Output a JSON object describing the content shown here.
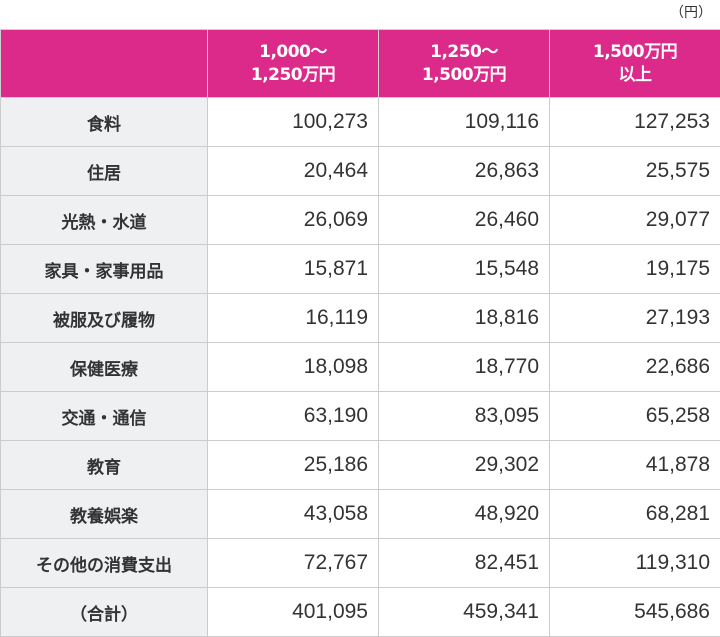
{
  "unit": "（円）",
  "colors": {
    "header_bg": "#dc2a8a",
    "label_bg": "#eef0f1",
    "border": "#cccccc"
  },
  "header": {
    "col0": "",
    "col1": {
      "line1": "1,000～",
      "line2": "1,250万円"
    },
    "col2": {
      "line1": "1,250～",
      "line2": "1,500万円"
    },
    "col3": {
      "line1": "1,500万円",
      "line2": "以上"
    }
  },
  "rows": [
    {
      "label": "食料",
      "values": [
        "100,273",
        "109,116",
        "127,253"
      ]
    },
    {
      "label": "住居",
      "values": [
        "20,464",
        "26,863",
        "25,575"
      ]
    },
    {
      "label": "光熱・水道",
      "values": [
        "26,069",
        "26,460",
        "29,077"
      ]
    },
    {
      "label": "家具・家事用品",
      "values": [
        "15,871",
        "15,548",
        "19,175"
      ]
    },
    {
      "label": "被服及び履物",
      "values": [
        "16,119",
        "18,816",
        "27,193"
      ]
    },
    {
      "label": "保健医療",
      "values": [
        "18,098",
        "18,770",
        "22,686"
      ]
    },
    {
      "label": "交通・通信",
      "values": [
        "63,190",
        "83,095",
        "65,258"
      ]
    },
    {
      "label": "教育",
      "values": [
        "25,186",
        "29,302",
        "41,878"
      ]
    },
    {
      "label": "教養娯楽",
      "values": [
        "43,058",
        "48,920",
        "68,281"
      ]
    },
    {
      "label": "その他の消費支出",
      "values": [
        "72,767",
        "82,451",
        "119,310"
      ]
    },
    {
      "label": "（合計）",
      "values": [
        "401,095",
        "459,341",
        "545,686"
      ]
    }
  ]
}
